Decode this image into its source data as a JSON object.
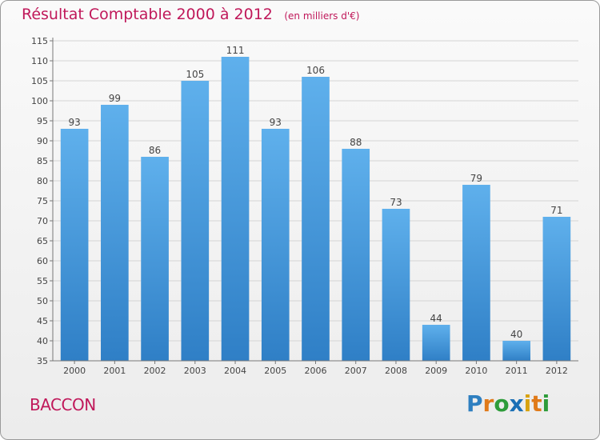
{
  "chart_data": {
    "type": "bar",
    "title": "Résultat Comptable 2000 à 2012",
    "subtitle": "(en milliers d'€)",
    "categories": [
      "2000",
      "2001",
      "2002",
      "2003",
      "2004",
      "2005",
      "2006",
      "2007",
      "2008",
      "2009",
      "2010",
      "2011",
      "2012"
    ],
    "values": [
      93,
      99,
      86,
      105,
      111,
      93,
      106,
      88,
      73,
      44,
      79,
      40,
      71
    ],
    "ylim": [
      35,
      115
    ],
    "yticks": [
      35,
      40,
      45,
      50,
      55,
      60,
      65,
      70,
      75,
      80,
      85,
      90,
      95,
      100,
      105,
      110,
      115
    ],
    "grid": true,
    "bar_color": "#4a9ee0",
    "xlabel": "",
    "ylabel": ""
  },
  "footer": {
    "town": "BACCON",
    "logo_letters": [
      {
        "ch": "P",
        "color": "#2e7fc0"
      },
      {
        "ch": "r",
        "color": "#e07a1a"
      },
      {
        "ch": "o",
        "color": "#2e9c3a"
      },
      {
        "ch": "x",
        "color": "#1a6fb5"
      },
      {
        "ch": "i",
        "color": "#d8a20e"
      },
      {
        "ch": "t",
        "color": "#e07a1a"
      },
      {
        "ch": "i",
        "color": "#2e9c3a"
      }
    ]
  }
}
